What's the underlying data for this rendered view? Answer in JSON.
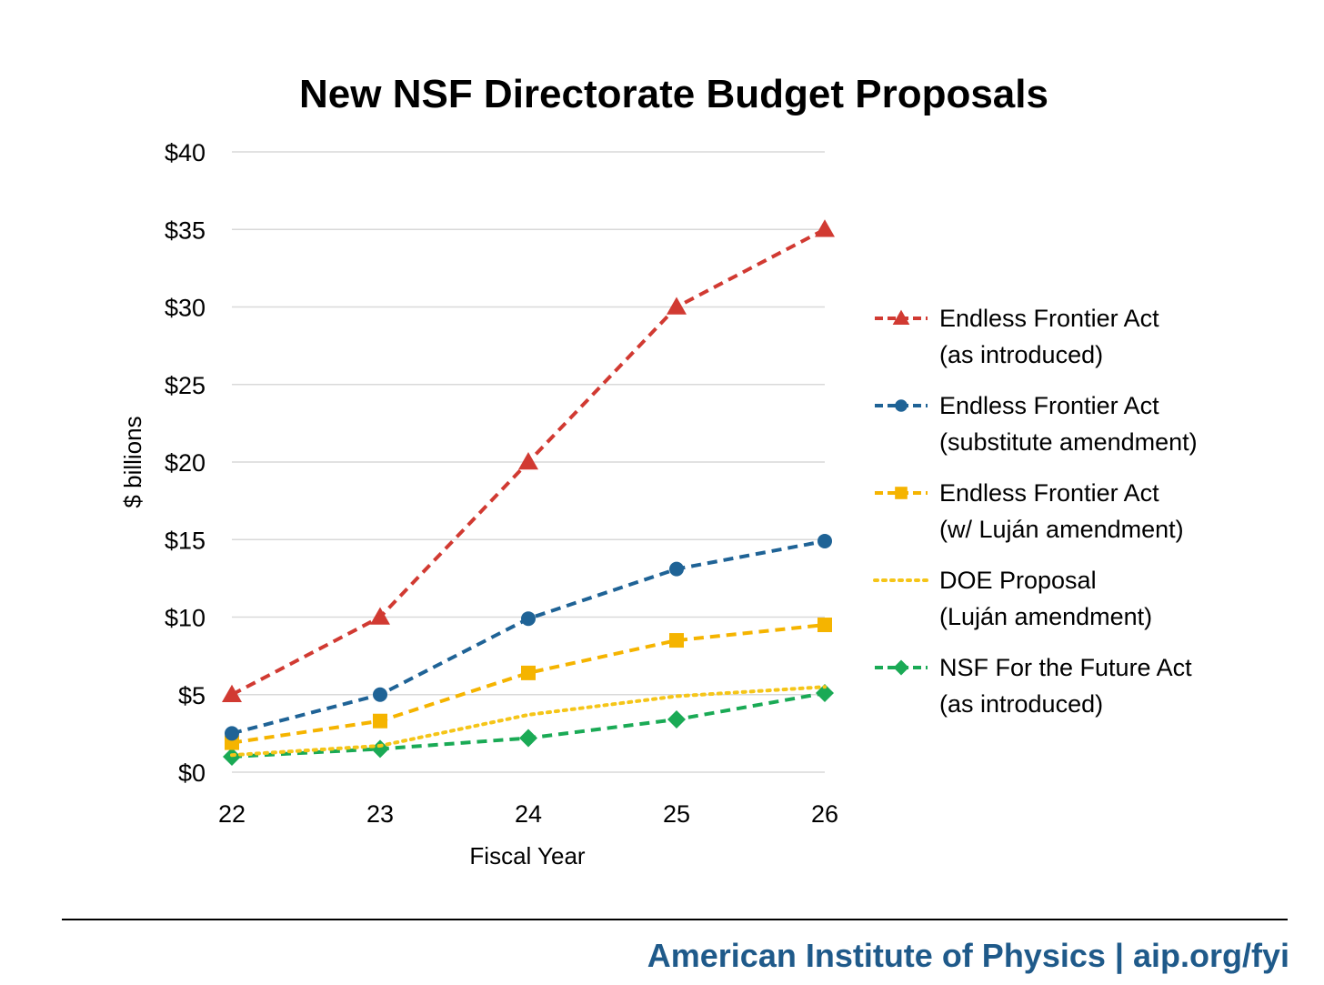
{
  "chart_data": {
    "type": "line",
    "title": "New NSF Directorate Budget Proposals",
    "xlabel": "Fiscal Year",
    "ylabel": "$ billions",
    "x": [
      22,
      23,
      24,
      25,
      26
    ],
    "x_tick_labels": [
      "22",
      "23",
      "24",
      "25",
      "26"
    ],
    "ylim": [
      0,
      40
    ],
    "y_ticks": [
      0,
      5,
      10,
      15,
      20,
      25,
      30,
      35,
      40
    ],
    "y_tick_labels": [
      "$0",
      "$5",
      "$10",
      "$15",
      "$20",
      "$25",
      "$30",
      "$35",
      "$40"
    ],
    "grid": "horizontal",
    "legend_position": "right",
    "series": [
      {
        "name_lines": [
          "Endless Frontier Act",
          "(as introduced)"
        ],
        "color": "#d13a32",
        "marker": "triangle",
        "dash": "dashed",
        "values": [
          5,
          10,
          20,
          30,
          35
        ]
      },
      {
        "name_lines": [
          "Endless Frontier Act",
          "(substitute amendment)"
        ],
        "color": "#1f6396",
        "marker": "circle",
        "dash": "dashed",
        "values": [
          2.5,
          5,
          9.9,
          13.1,
          14.9
        ]
      },
      {
        "name_lines": [
          "Endless Frontier Act",
          "(w/ Luján amendment)"
        ],
        "color": "#f5b400",
        "marker": "square",
        "dash": "dashed",
        "values": [
          1.9,
          3.3,
          6.4,
          8.5,
          9.5
        ]
      },
      {
        "name_lines": [
          "DOE Proposal",
          "(Luján amendment)"
        ],
        "color": "#f5c518",
        "marker": "none",
        "dash": "dotted",
        "values": [
          1.1,
          1.7,
          3.7,
          4.9,
          5.5
        ]
      },
      {
        "name_lines": [
          "NSF For the Future Act",
          "(as introduced)"
        ],
        "color": "#1aaa55",
        "marker": "diamond",
        "dash": "dashed",
        "values": [
          1,
          1.5,
          2.2,
          3.4,
          5.1
        ]
      }
    ]
  },
  "footer": {
    "text": "American Institute of Physics | aip.org/fyi"
  }
}
